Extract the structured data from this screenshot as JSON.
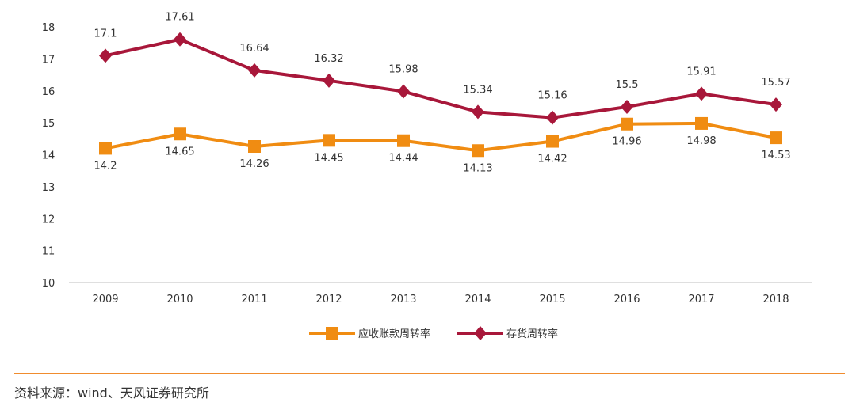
{
  "chart_data": {
    "type": "line",
    "categories": [
      "2009",
      "2010",
      "2011",
      "2012",
      "2013",
      "2014",
      "2015",
      "2016",
      "2017",
      "2018"
    ],
    "ylim": [
      10,
      18
    ],
    "yticks": [
      10,
      11,
      12,
      13,
      14,
      15,
      16,
      17,
      18
    ],
    "series": [
      {
        "name": "应收账款周转率",
        "values": [
          14.2,
          14.65,
          14.26,
          14.45,
          14.44,
          14.13,
          14.42,
          14.96,
          14.98,
          14.53
        ],
        "color": "#f08c12",
        "marker": "square",
        "label_position": "below"
      },
      {
        "name": "存货周转率",
        "values": [
          17.1,
          17.61,
          16.64,
          16.32,
          15.98,
          15.34,
          15.16,
          15.5,
          15.91,
          15.57
        ],
        "color": "#a8173a",
        "marker": "diamond",
        "label_position": "above"
      }
    ],
    "legend": "bottom-center",
    "grid": false
  },
  "source": "资料来源：wind、天风证券研究所",
  "colors": {
    "divider": "#f08c2e",
    "axis": "#bfbfbf",
    "text": "#333333"
  }
}
